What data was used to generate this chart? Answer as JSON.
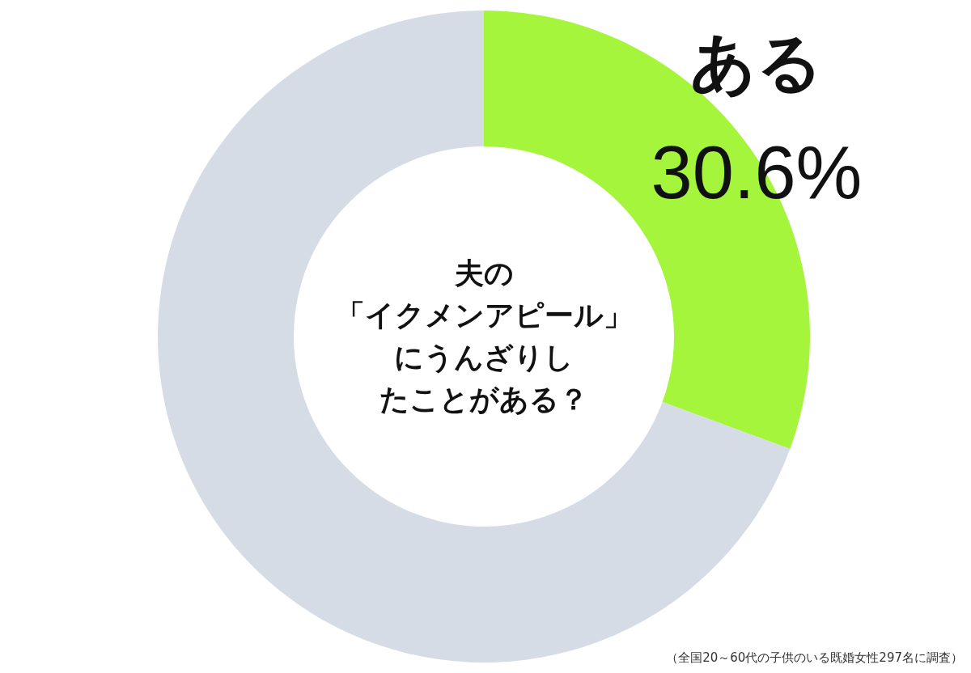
{
  "chart_data": {
    "type": "donut",
    "title": "夫の「イクメンアピール」にうんざりしたことがある？",
    "categories": [
      "ある",
      null
    ],
    "values": [
      30.6,
      69.4
    ],
    "colors": [
      "#a4f53c",
      "#d5dce6"
    ],
    "value_labels": [
      "30.6%",
      null
    ],
    "annotations": [
      "（全国20～60代の子供のいる既婚女性297名に調査）"
    ]
  }
}
